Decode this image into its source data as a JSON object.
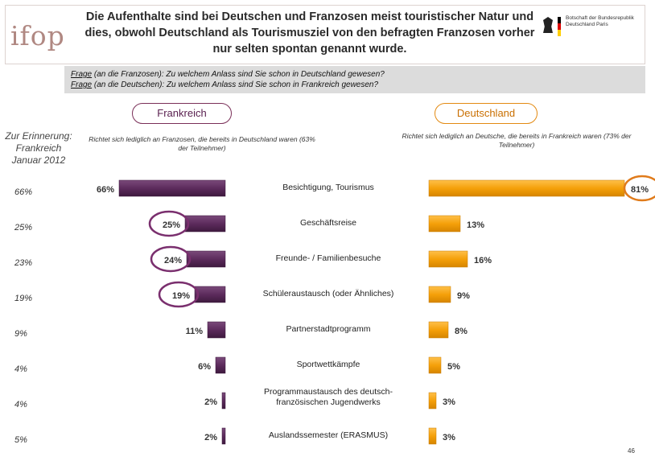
{
  "header": {
    "logo_text": "ifop",
    "title": "Die Aufenthalte sind bei Deutschen und Franzosen meist touristischer Natur und dies, obwohl Deutschland als Tourismusziel von den befragten Franzosen vorher nur selten spontan genannt wurde.",
    "embassy_text": "Botschaft der Bundesrepublik Deutschland Paris"
  },
  "question": {
    "fr_label": "Frage",
    "fr_text": " (an die Franzosen): Zu welchem Anlass sind Sie schon in Deutschland gewesen?",
    "de_label": "Frage",
    "de_text": " (an die Deutschen): Zu welchem Anlass sind Sie schon in Frankreich gewesen?"
  },
  "panels": {
    "fr_title": "Frankreich",
    "de_title": "Deutschland",
    "reminder": "Zur Erinnerung: Frankreich Januar 2012",
    "fr_note": "Richtet sich lediglich an Franzosen, die bereits in Deutschland waren (63% der Teilnehmer)",
    "de_note": "Richtet sich lediglich an Deutsche, die bereits in Frankreich waren (73% der Teilnehmer)"
  },
  "colors": {
    "france": "#5c2b5c",
    "germany": "#f5a00a",
    "france_highlight": "#7a2f6e",
    "germany_highlight": "#e07b1b"
  },
  "chart_data": {
    "type": "bar",
    "title": "",
    "xlabel": "",
    "ylabel": "",
    "categories": [
      "Besichtigung, Tourismus",
      "Geschäftsreise",
      "Freunde- / Familienbesuche",
      "Schüleraustausch (oder Ähnliches)",
      "Partnerstadtprogramm",
      "Sportwettkämpfe",
      "Programmaustausch des deutsch-französischen Jugendwerks",
      "Auslandssemester (ERASMUS)"
    ],
    "series": [
      {
        "name": "Frankreich",
        "values": [
          66,
          25,
          24,
          19,
          11,
          6,
          2,
          2
        ],
        "labels": [
          "66%",
          "25%",
          "24%",
          "19%",
          "11%",
          "6%",
          "2%",
          "2%"
        ],
        "highlighted": [
          false,
          true,
          true,
          true,
          false,
          false,
          false,
          false
        ]
      },
      {
        "name": "Deutschland",
        "values": [
          81,
          13,
          16,
          9,
          8,
          5,
          3,
          3
        ],
        "labels": [
          "81%",
          "13%",
          "16%",
          "9%",
          "8%",
          "5%",
          "3%",
          "3%"
        ],
        "highlighted": [
          true,
          false,
          false,
          false,
          false,
          false,
          false,
          false
        ]
      },
      {
        "name": "Zur Erinnerung: Frankreich Januar 2012",
        "values": [
          66,
          25,
          23,
          19,
          9,
          4,
          4,
          5
        ],
        "labels": [
          "66%",
          "25%",
          "23%",
          "19%",
          "9%",
          "4%",
          "4%",
          "5%"
        ]
      }
    ],
    "xlim": [
      0,
      100
    ]
  },
  "footer": {
    "page_number": "46"
  }
}
